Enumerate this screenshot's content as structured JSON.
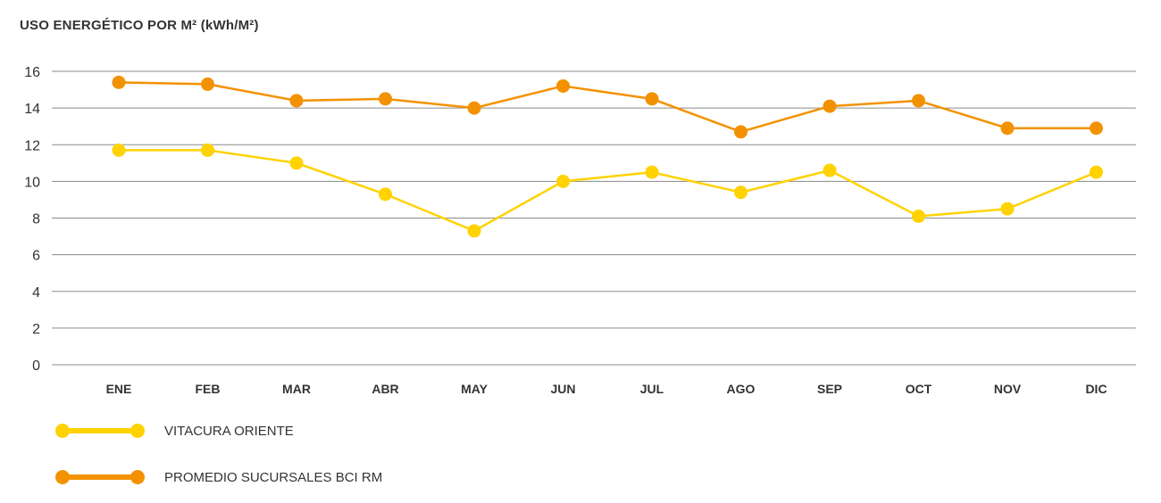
{
  "chart_data": {
    "type": "line",
    "title": "USO ENERGÉTICO POR M² (kWh/M²)",
    "categories": [
      "ENE",
      "FEB",
      "MAR",
      "ABR",
      "MAY",
      "JUN",
      "JUL",
      "AGO",
      "SEP",
      "OCT",
      "NOV",
      "DIC"
    ],
    "y_ticks": [
      "0",
      "2",
      "4",
      "6",
      "8",
      "10",
      "12",
      "14",
      "16"
    ],
    "ylim": [
      0,
      16
    ],
    "grid": true,
    "legend_position": "bottom-left",
    "series": [
      {
        "name": "VITACURA ORIENTE",
        "color": "#FFD200",
        "values": [
          11.7,
          11.7,
          11.0,
          9.3,
          7.3,
          10.0,
          10.5,
          9.4,
          10.6,
          8.1,
          8.5,
          10.5
        ]
      },
      {
        "name": "PROMEDIO SUCURSALES BCI RM",
        "color": "#F39200",
        "values": [
          15.4,
          15.3,
          14.4,
          14.5,
          14.0,
          15.2,
          14.5,
          12.7,
          14.1,
          14.4,
          12.9,
          12.9
        ]
      }
    ]
  }
}
